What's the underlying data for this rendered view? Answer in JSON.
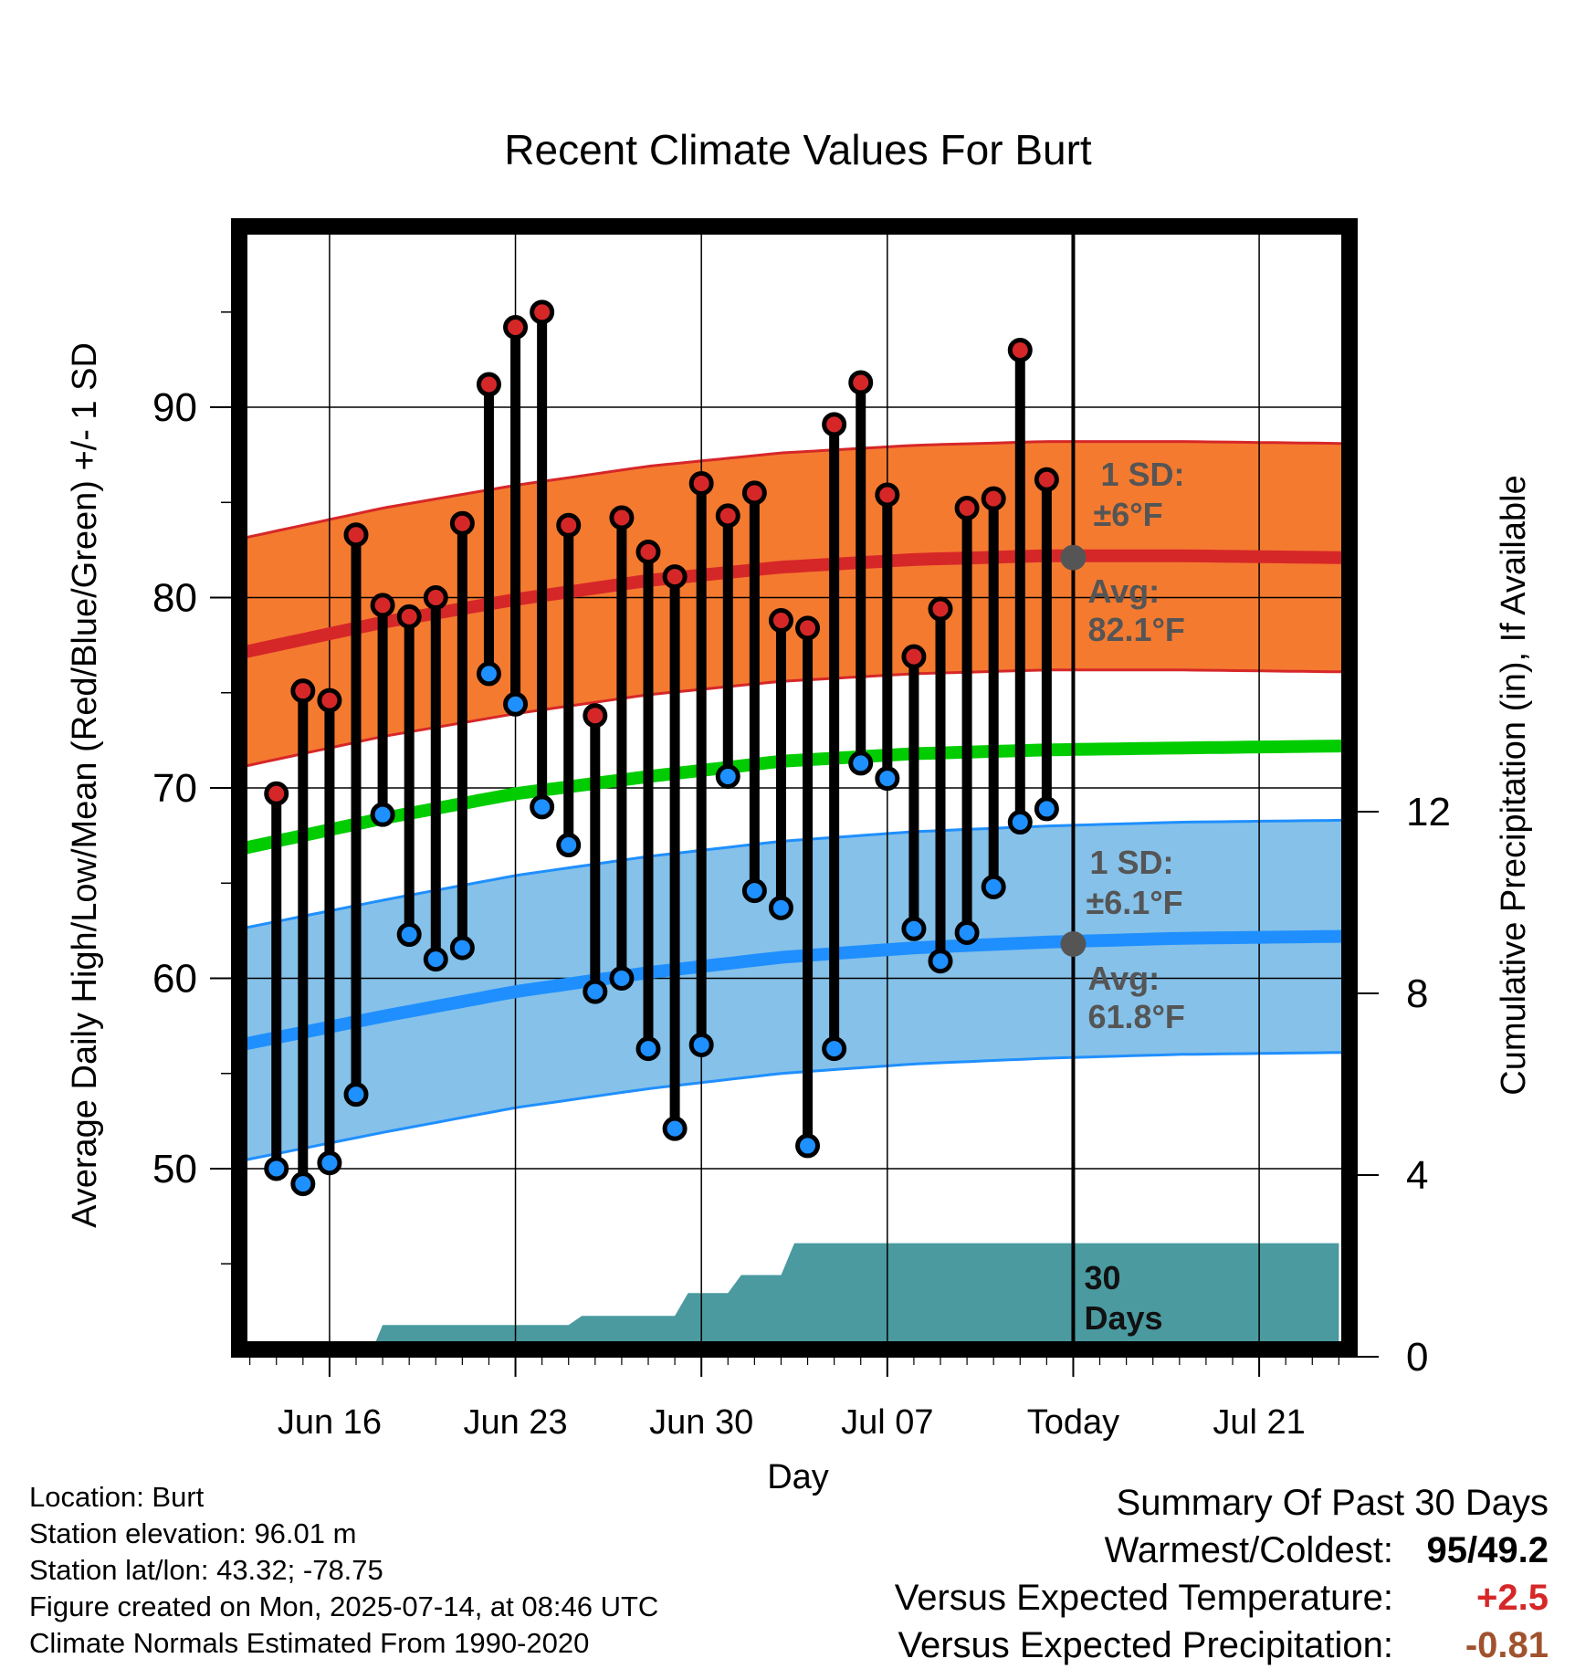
{
  "chart_data": {
    "type": "line",
    "title": "Recent Climate Values For Burt",
    "xlabel": "Day",
    "ylabel": "Average Daily High/Low/Mean (Red/Blue/Green) +/- 1 SD",
    "y2label": "Cumulative Precipitation (in), If Available",
    "ylim": [
      40.5,
      99.5
    ],
    "y2lim": [
      0,
      18
    ],
    "xlim": [
      -0.4,
      41.4
    ],
    "x_ticks": [
      {
        "label": "Jun 16",
        "x": 3
      },
      {
        "label": "Jun 23",
        "x": 10
      },
      {
        "label": "Jun 30",
        "x": 17
      },
      {
        "label": "Jul 07",
        "x": 24
      },
      {
        "label": "Today",
        "x": 31
      },
      {
        "label": "Jul 21",
        "x": 38
      }
    ],
    "y_ticks": [
      50,
      60,
      70,
      80,
      90
    ],
    "y2_ticks": [
      0,
      4,
      8,
      12
    ],
    "today_x": 31,
    "today_label": [
      "30",
      "Days"
    ],
    "normals": {
      "x": [
        0,
        5,
        10,
        15,
        20,
        25,
        30,
        35,
        41
      ],
      "high_avg": [
        77.2,
        78.7,
        79.9,
        80.9,
        81.6,
        82.0,
        82.2,
        82.2,
        82.1
      ],
      "high_sd": 6.0,
      "low_avg": [
        56.6,
        58.0,
        59.3,
        60.3,
        61.1,
        61.6,
        61.9,
        62.1,
        62.2
      ],
      "low_sd": 6.1,
      "mean_avg": [
        66.9,
        68.4,
        69.7,
        70.6,
        71.4,
        71.8,
        72.0,
        72.1,
        72.2
      ]
    },
    "annotations": {
      "high_sd_label": [
        "1 SD:",
        "±6°F"
      ],
      "high_avg_label": [
        "Avg:",
        "82.1°F"
      ],
      "low_sd_label": [
        "1 SD:",
        "±6.1°F"
      ],
      "low_avg_label": [
        "Avg:",
        "61.8°F"
      ],
      "high_avg_value": 82.1,
      "low_avg_value": 61.8
    },
    "series": [
      {
        "name": "High",
        "x": [
          1,
          2,
          3,
          4,
          5,
          6,
          7,
          8,
          9,
          10,
          11,
          12,
          13,
          14,
          15,
          16,
          17,
          18,
          19,
          20,
          21,
          22,
          23,
          24,
          25,
          26,
          27,
          28,
          29,
          30
        ],
        "values": [
          69.7,
          75.1,
          74.6,
          83.3,
          79.6,
          79.0,
          80.0,
          83.9,
          91.2,
          94.2,
          95.0,
          83.8,
          73.8,
          84.2,
          82.4,
          81.1,
          86.0,
          84.3,
          85.5,
          78.8,
          78.4,
          89.1,
          91.3,
          85.4,
          76.9,
          79.4,
          84.7,
          85.2,
          93.0,
          86.2
        ]
      },
      {
        "name": "Low",
        "x": [
          1,
          2,
          3,
          4,
          5,
          6,
          7,
          8,
          9,
          10,
          11,
          12,
          13,
          14,
          15,
          16,
          17,
          18,
          19,
          20,
          21,
          22,
          23,
          24,
          25,
          26,
          27,
          28,
          29,
          30
        ],
        "values": [
          50.0,
          49.2,
          50.3,
          53.9,
          68.6,
          62.3,
          61.0,
          61.6,
          76.0,
          74.4,
          69.0,
          67.0,
          59.3,
          60.0,
          56.3,
          52.1,
          56.5,
          70.6,
          64.6,
          63.7,
          51.2,
          56.3,
          71.3,
          70.5,
          62.6,
          60.9,
          62.4,
          64.8,
          68.2,
          68.9
        ]
      }
    ],
    "precip": {
      "x": [
        4.5,
        5,
        12,
        12.5,
        16,
        16.5,
        18,
        18.5,
        20,
        20.5,
        28,
        28.5,
        41
      ],
      "values": [
        0,
        0.7,
        0.7,
        0.9,
        0.9,
        1.4,
        1.4,
        1.8,
        1.8,
        2.5,
        2.5,
        2.5,
        2.5
      ]
    }
  },
  "footer": {
    "lines": [
      "Location: Burt",
      "Station elevation: 96.01 m",
      "Station lat/lon: 43.32; -78.75",
      "Figure created on Mon, 2025-07-14, at 08:46 UTC",
      "Climate Normals Estimated From 1990-2020"
    ]
  },
  "summary": {
    "title": "Summary Of Past 30 Days",
    "warmest_coldest_label": "Warmest/Coldest:",
    "warmest_coldest_value": "95/49.2",
    "temp_label": "Versus Expected Temperature:",
    "temp_value": "+2.5",
    "precip_label": "Versus Expected Precipitation:",
    "precip_value": "-0.81"
  },
  "colors": {
    "high_band": "#f47a30",
    "high_line": "#d62728",
    "low_band": "#85c1e9",
    "low_line": "#1f8fff",
    "mean_line": "#00cc00",
    "precip_fill": "#4a9aa0",
    "high_marker": "#d62728",
    "low_marker": "#1e90ff",
    "annotation": "#555555"
  }
}
